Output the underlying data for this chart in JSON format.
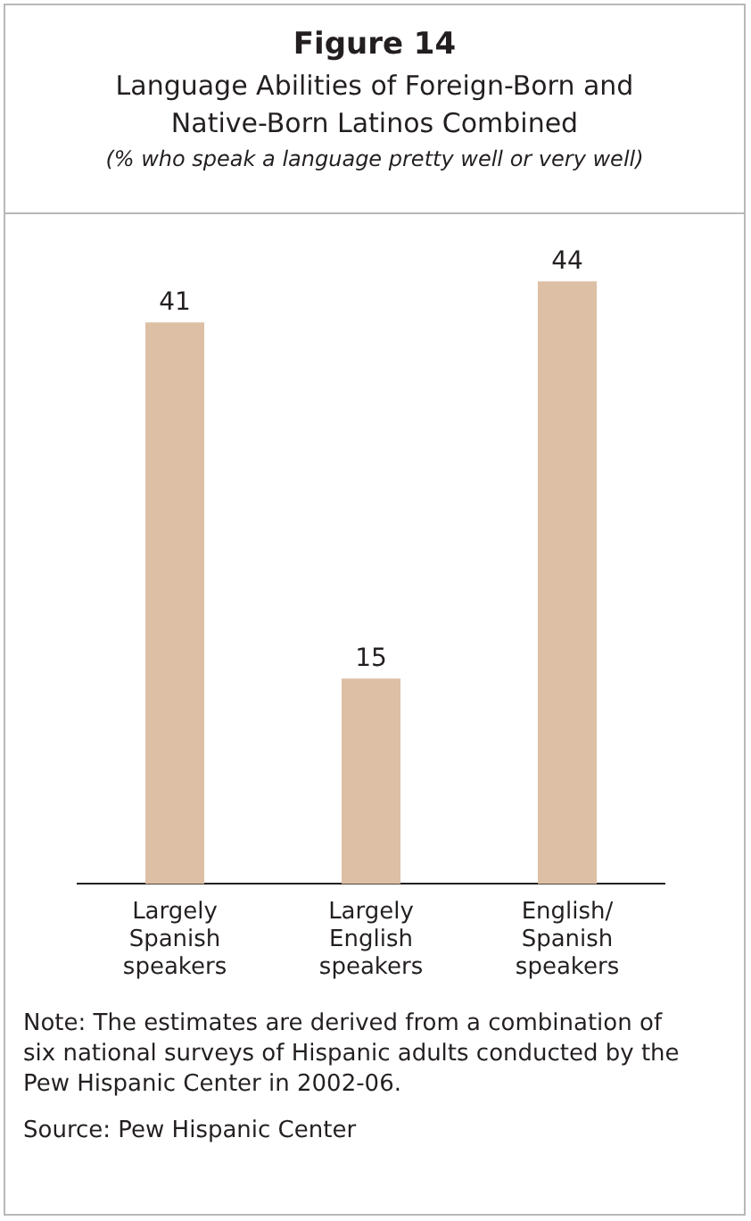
{
  "chart_data": {
    "type": "bar",
    "title": "Figure 14",
    "subtitle": "Language Abilities of Foreign-Born and Native-Born Latinos Combined",
    "categories": [
      "Largely Spanish speakers",
      "Largely English speakers",
      "English/Spanish speakers"
    ],
    "values": [
      41,
      15,
      44
    ],
    "color": "#dcbfa5",
    "tick_labels": "x",
    "data_labels": true,
    "annotations": [
      "(% who speak a language pretty well or very well)",
      "Note: The estimates are derived from a combination of six national surveys of Hispanic adults conducted by the Pew Hispanic Center in 2002-06.",
      "Source: Pew Hispanic Center"
    ]
  }
}
